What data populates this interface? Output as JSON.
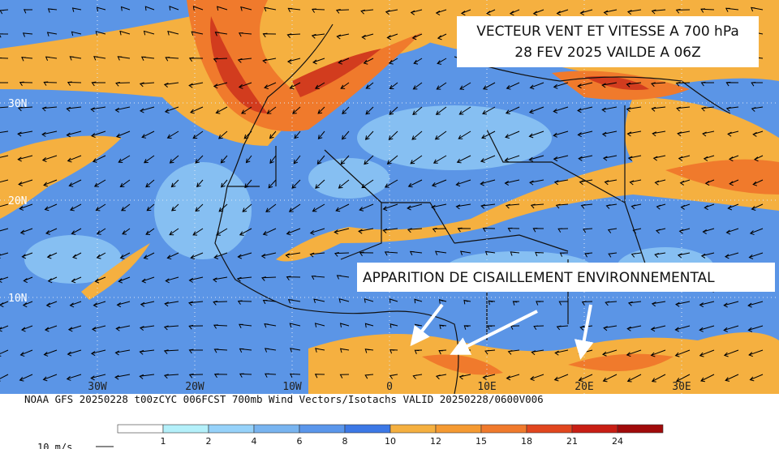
{
  "title": {
    "line1": "VECTEUR VENT ET VITESSE A 700 hPa",
    "line2": "28 FEV 2025 VAILDE A 06Z"
  },
  "annotation": "APPARITION DE CISAILLEMENT ENVIRONNEMENTAL",
  "latitudes": [
    "30N",
    "20N",
    "10N"
  ],
  "longitudes": [
    "30W",
    "20W",
    "10W",
    "0",
    "10E",
    "20E",
    "30E"
  ],
  "footer": "NOAA GFS 20250228 t00zCYC 006FCST 700mb Wind Vectors/Isotachs   VALID 20250228/0600V006",
  "colorbar": {
    "labels": [
      "1",
      "2",
      "4",
      "6",
      "8",
      "10",
      "12",
      "15",
      "18",
      "21",
      "24"
    ]
  },
  "scale_label": "10 m/s"
}
